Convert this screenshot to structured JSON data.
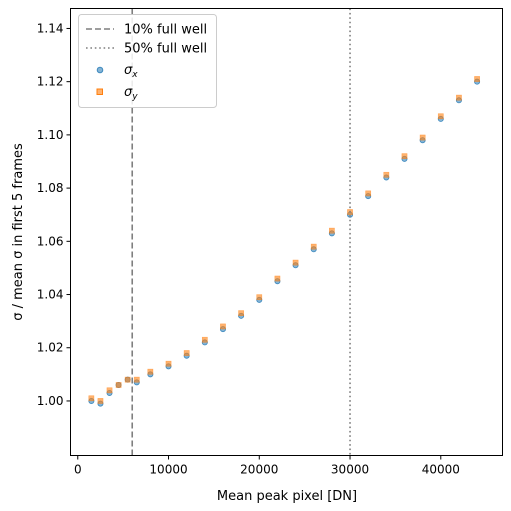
{
  "chart_data": {
    "type": "scatter",
    "xlabel": "Mean peak pixel [DN]",
    "ylabel": "σ / mean σ in first 5 frames",
    "xlim": [
      -800,
      46800
    ],
    "ylim": [
      0.9795,
      1.1475
    ],
    "xticks": [
      0,
      10000,
      20000,
      30000,
      40000
    ],
    "xtick_labels": [
      "0",
      "10000",
      "20000",
      "30000",
      "40000"
    ],
    "yticks": [
      1.0,
      1.02,
      1.04,
      1.06,
      1.08,
      1.1,
      1.12,
      1.14
    ],
    "ytick_labels": [
      "1.00",
      "1.02",
      "1.04",
      "1.06",
      "1.08",
      "1.10",
      "1.12",
      "1.14"
    ],
    "grid": false,
    "legend_position": "top-left",
    "reference_lines": [
      {
        "label": "10% full well",
        "x": 6000,
        "style": "dashed",
        "color": "#7f7f7f"
      },
      {
        "label": "50% full well",
        "x": 30000,
        "style": "dotted",
        "color": "#7f7f7f"
      }
    ],
    "series": [
      {
        "name": "σx",
        "marker": "circle",
        "color": "#1f77b4",
        "x": [
          1500,
          2500,
          3500,
          4500,
          5500,
          6500,
          8000,
          10000,
          12000,
          14000,
          16000,
          18000,
          20000,
          22000,
          24000,
          26000,
          28000,
          30000,
          32000,
          34000,
          36000,
          38000,
          40000,
          42000,
          44000
        ],
        "y": [
          1.0,
          0.999,
          1.003,
          1.006,
          1.008,
          1.007,
          1.01,
          1.013,
          1.017,
          1.022,
          1.027,
          1.032,
          1.038,
          1.045,
          1.051,
          1.057,
          1.063,
          1.07,
          1.077,
          1.084,
          1.091,
          1.098,
          1.106,
          1.113,
          1.12
        ]
      },
      {
        "name": "σy",
        "marker": "square",
        "color": "#ff7f0e",
        "x": [
          1500,
          2500,
          3500,
          4500,
          5500,
          6500,
          8000,
          10000,
          12000,
          14000,
          16000,
          18000,
          20000,
          22000,
          24000,
          26000,
          28000,
          30000,
          32000,
          34000,
          36000,
          38000,
          40000,
          42000,
          44000
        ],
        "y": [
          1.001,
          1.0,
          1.004,
          1.006,
          1.008,
          1.008,
          1.011,
          1.014,
          1.018,
          1.023,
          1.028,
          1.033,
          1.039,
          1.046,
          1.052,
          1.058,
          1.064,
          1.071,
          1.078,
          1.085,
          1.092,
          1.099,
          1.107,
          1.114,
          1.121
        ]
      }
    ]
  }
}
